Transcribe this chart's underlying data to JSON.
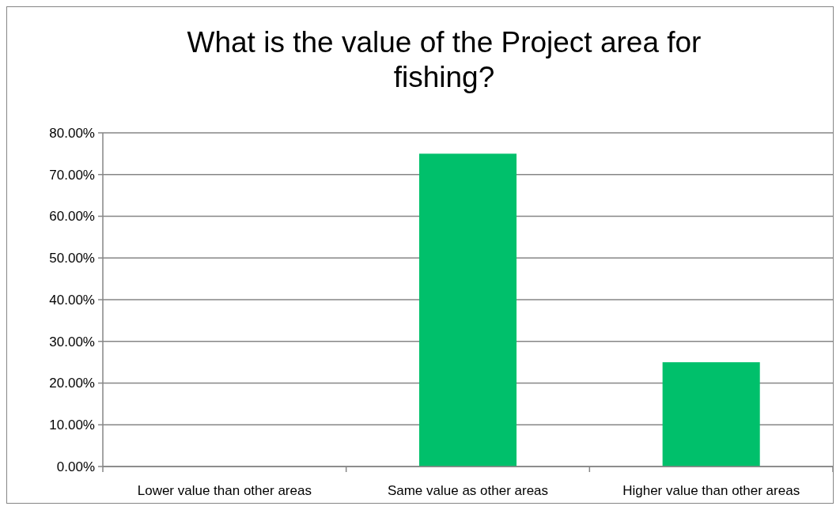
{
  "chart_data": {
    "type": "bar",
    "title": "What is the value of the Project area for fishing?",
    "categories": [
      "Lower value than other areas",
      "Same value as other areas",
      "Higher value than other areas"
    ],
    "values": [
      0,
      75,
      25
    ],
    "color": "#00c06b",
    "ylim": [
      0,
      80
    ],
    "yticks": [
      {
        "value": 0,
        "label": "0.00%"
      },
      {
        "value": 10,
        "label": "10.00%"
      },
      {
        "value": 20,
        "label": "20.00%"
      },
      {
        "value": 30,
        "label": "30.00%"
      },
      {
        "value": 40,
        "label": "40.00%"
      },
      {
        "value": 50,
        "label": "50.00%"
      },
      {
        "value": 60,
        "label": "60.00%"
      },
      {
        "value": 70,
        "label": "70.00%"
      },
      {
        "value": 80,
        "label": "80.00%"
      }
    ],
    "grid": "y"
  }
}
